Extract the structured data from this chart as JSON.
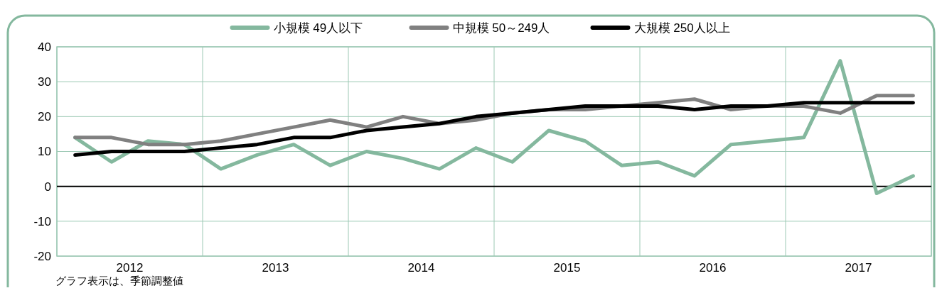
{
  "chart_data": {
    "type": "line",
    "x": [
      2012.125,
      2012.375,
      2012.625,
      2012.875,
      2013.125,
      2013.375,
      2013.625,
      2013.875,
      2014.125,
      2014.375,
      2014.625,
      2014.875,
      2015.125,
      2015.375,
      2015.625,
      2015.875,
      2016.125,
      2016.375,
      2016.625,
      2016.875,
      2017.125,
      2017.375,
      2017.625,
      2017.875
    ],
    "xlim": [
      2012,
      2018
    ],
    "xticks": [
      {
        "value": 2012,
        "label": null
      },
      {
        "value": 2012.5,
        "label": "2012"
      },
      {
        "value": 2013,
        "label": null
      },
      {
        "value": 2013.5,
        "label": "2013"
      },
      {
        "value": 2014,
        "label": null
      },
      {
        "value": 2014.5,
        "label": "2014"
      },
      {
        "value": 2015,
        "label": null
      },
      {
        "value": 2015.5,
        "label": "2015"
      },
      {
        "value": 2016,
        "label": null
      },
      {
        "value": 2016.5,
        "label": "2016"
      },
      {
        "value": 2017,
        "label": null
      },
      {
        "value": 2017.5,
        "label": "2017"
      },
      {
        "value": 2018,
        "label": null
      }
    ],
    "ylim": [
      -20,
      40
    ],
    "yticks": [
      -20,
      -10,
      0,
      10,
      20,
      30,
      40
    ],
    "grid": true,
    "legend": "top",
    "marker": "none",
    "line_style": "solid",
    "ref_lines": [
      {
        "axis": "y",
        "value": 0,
        "color": "#000000"
      }
    ],
    "annotations": [
      "グラフ表示は、季節調整値"
    ],
    "series": [
      {
        "name": "小規模 49人以下",
        "color": "#84b89e",
        "values": [
          14,
          7,
          13,
          12,
          5,
          9,
          12,
          6,
          10,
          8,
          5,
          11,
          7,
          16,
          13,
          6,
          7,
          3,
          12,
          13,
          14,
          36,
          -2,
          3
        ]
      },
      {
        "name": "中規模 50～249人",
        "color": "#808080",
        "values": [
          14,
          14,
          12,
          12,
          13,
          15,
          17,
          19,
          17,
          20,
          18,
          19,
          21,
          22,
          22,
          23,
          24,
          25,
          22,
          23,
          23,
          21,
          26,
          26
        ]
      },
      {
        "name": "大規模 250人以上",
        "color": "#000000",
        "values": [
          9,
          10,
          10,
          10,
          11,
          12,
          14,
          14,
          16,
          17,
          18,
          20,
          21,
          22,
          23,
          23,
          23,
          22,
          23,
          23,
          24,
          24,
          24,
          24
        ]
      }
    ]
  }
}
